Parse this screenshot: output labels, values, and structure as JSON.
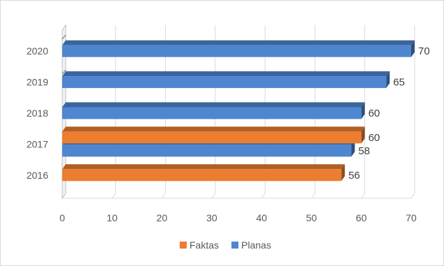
{
  "chart_data": {
    "type": "bar",
    "orientation": "horizontal",
    "style": "3d-clustered",
    "categories": [
      "2016",
      "2017",
      "2018",
      "2019",
      "2020"
    ],
    "series": [
      {
        "name": "Faktas",
        "color": "#ED7D31",
        "values": [
          56,
          60,
          null,
          null,
          null
        ]
      },
      {
        "name": "Planas",
        "color": "#4F86D0",
        "values": [
          null,
          58,
          60,
          65,
          70
        ]
      }
    ],
    "xlim": [
      0,
      70
    ],
    "xticks": [
      "0",
      "10",
      "20",
      "30",
      "40",
      "50",
      "60",
      "70"
    ],
    "grid": true,
    "legend_position": "bottom"
  }
}
